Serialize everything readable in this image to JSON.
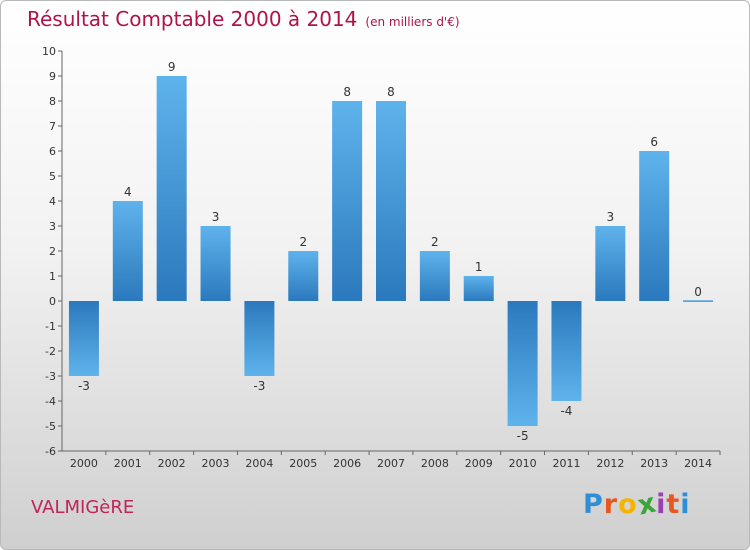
{
  "header": {
    "title": "Résultat Comptable 2000 à 2014",
    "subtitle": "(en milliers d'€)"
  },
  "footer": {
    "commune": "VALMIGèRE",
    "logo_letters": [
      "P",
      "r",
      "o",
      "x",
      "i",
      "t",
      "i"
    ],
    "logo_colors": [
      "#2f8fd6",
      "#e8571f",
      "#f4b400",
      "#3aa63a",
      "#9b3fb5",
      "#e8571f",
      "#2f8fd6"
    ]
  },
  "chart_data": {
    "type": "bar",
    "title": "Résultat Comptable 2000 à 2014",
    "subtitle": "(en milliers d'€)",
    "categories": [
      "2000",
      "2001",
      "2002",
      "2003",
      "2004",
      "2005",
      "2006",
      "2007",
      "2008",
      "2009",
      "2010",
      "2011",
      "2012",
      "2013",
      "2014"
    ],
    "values": [
      -3,
      4,
      9,
      3,
      -3,
      2,
      8,
      8,
      2,
      1,
      -5,
      -4,
      3,
      6,
      0
    ],
    "ylim": [
      -6,
      10
    ],
    "yticks": [
      -6,
      -5,
      -4,
      -3,
      -2,
      -1,
      0,
      1,
      2,
      3,
      4,
      5,
      6,
      7,
      8,
      9,
      10
    ],
    "grid": false,
    "bar_color_light": "#5aaee8",
    "bar_color_dark": "#2a7dc2"
  }
}
